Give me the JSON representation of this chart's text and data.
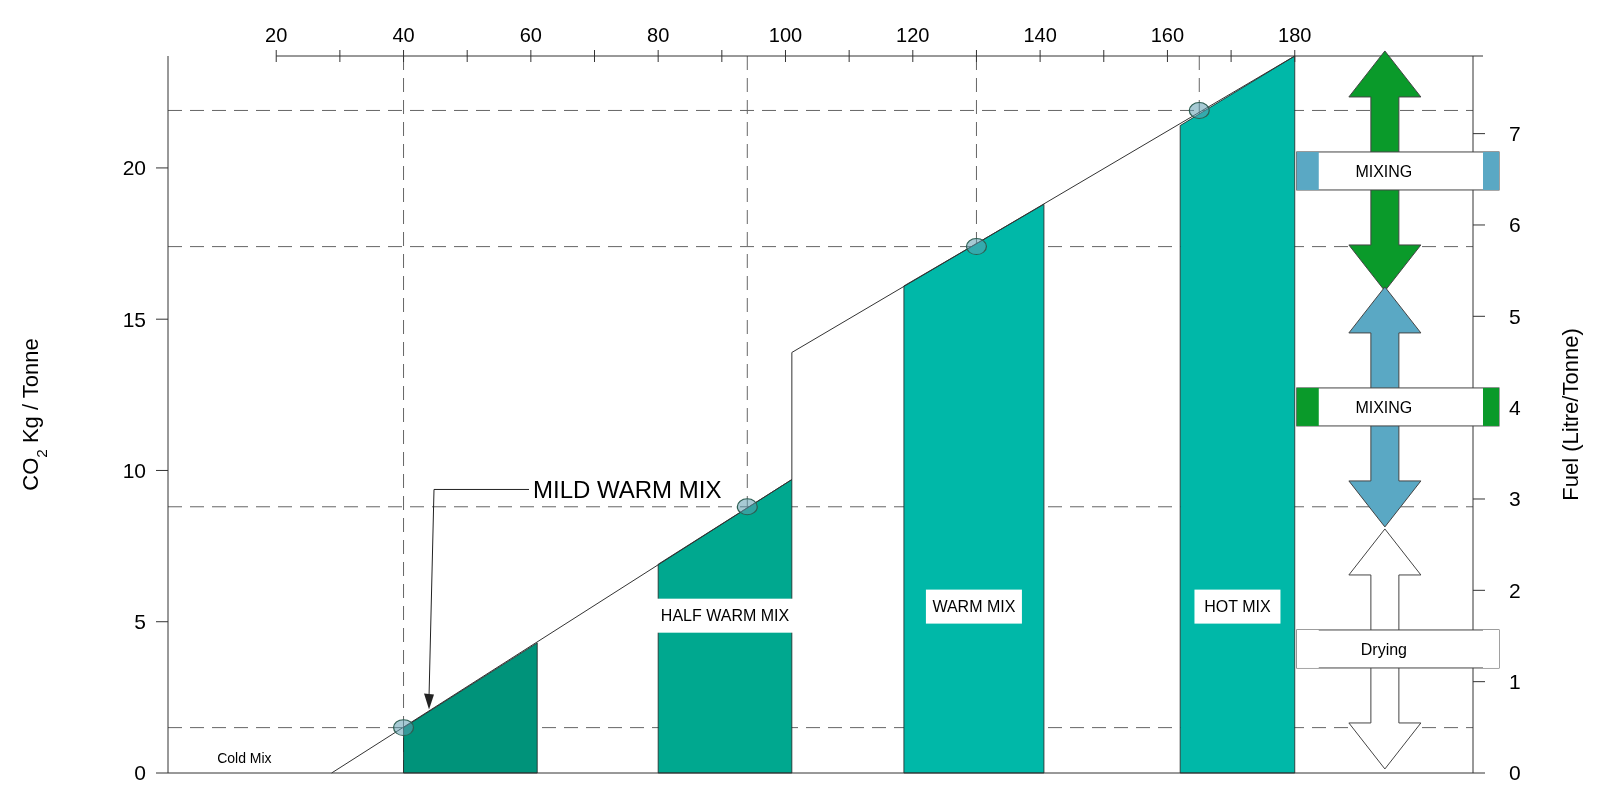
{
  "chart_data": {
    "type": "line",
    "ylabel": "CO$_{2}$ Kg / Tonne",
    "y2label": "Fuel (Litre/Tonne)",
    "xlim": [
      3,
      208
    ],
    "xticks": [
      20,
      {
        "value": 30,
        "label": null
      },
      40,
      {
        "value": 50,
        "label": null
      },
      60,
      {
        "value": 70,
        "label": null
      },
      80,
      {
        "value": 90,
        "label": null
      },
      100,
      {
        "value": 110,
        "label": null
      },
      120,
      {
        "value": 130,
        "label": null
      },
      140,
      {
        "value": 150,
        "label": null
      },
      160,
      {
        "value": 170,
        "label": null
      },
      180
    ],
    "ylim": [
      0,
      23.7
    ],
    "yticks": [
      0,
      5,
      10,
      15,
      20
    ],
    "y2lim": [
      0,
      7.85
    ],
    "y2ticks": [
      0,
      1,
      2,
      3,
      4,
      5,
      6,
      7
    ],
    "grid": false,
    "series": [
      {
        "type": "area",
        "x": [
          40,
          61
        ],
        "values": [
          1.5,
          4.3
        ],
        "color": "#00937a"
      },
      {
        "type": "area",
        "x": [
          80,
          101
        ],
        "values": [
          6.9,
          9.7
        ],
        "color": "#00a88f"
      },
      {
        "type": "area",
        "x": [
          118.6,
          140.6
        ],
        "values": [
          16.1,
          18.8
        ],
        "color": "#00b8a8"
      },
      {
        "type": "area",
        "x": [
          162,
          180
        ],
        "values": [
          21.4,
          23.7
        ],
        "color": "#00b8a8"
      },
      {
        "x": [
          28.7,
          101,
          101,
          180
        ],
        "values": [
          0,
          9.7,
          13.9,
          23.7
        ],
        "color": "#333333",
        "line_style": "solid"
      },
      {
        "type": "scatter",
        "x": [
          40,
          94,
          130,
          165
        ],
        "values": [
          1.5,
          8.8,
          17.4,
          21.9
        ],
        "color": "#5f9fb0",
        "marker": "circle"
      }
    ],
    "ref_lines": [
      {
        "axis": "y",
        "value": 1.5,
        "color": "#666666",
        "line_style": "dashed"
      },
      {
        "axis": "y",
        "value": 8.8,
        "color": "#666666",
        "line_style": "dashed"
      },
      {
        "axis": "y",
        "value": 17.4,
        "color": "#666666",
        "line_style": "dashed"
      },
      {
        "axis": "y",
        "value": 21.9,
        "color": "#666666",
        "line_style": "dashed"
      },
      {
        "axis": "x",
        "value": 40,
        "color": "#666666",
        "line_style": "dashed"
      },
      {
        "axis": "x",
        "value": 94,
        "color": "#666666",
        "line_style": "dashed"
      },
      {
        "axis": "x",
        "value": 130,
        "color": "#666666",
        "line_style": "dashed"
      },
      {
        "axis": "x",
        "value": 165,
        "color": "#666666",
        "line_style": "dashed"
      }
    ],
    "annotations": [
      "Cold Mix",
      "MILD WARM MIX",
      "HALF WARM MIX",
      "WARM MIX",
      "HOT MIX",
      "MIXING",
      "MIXING",
      "Drying"
    ]
  }
}
